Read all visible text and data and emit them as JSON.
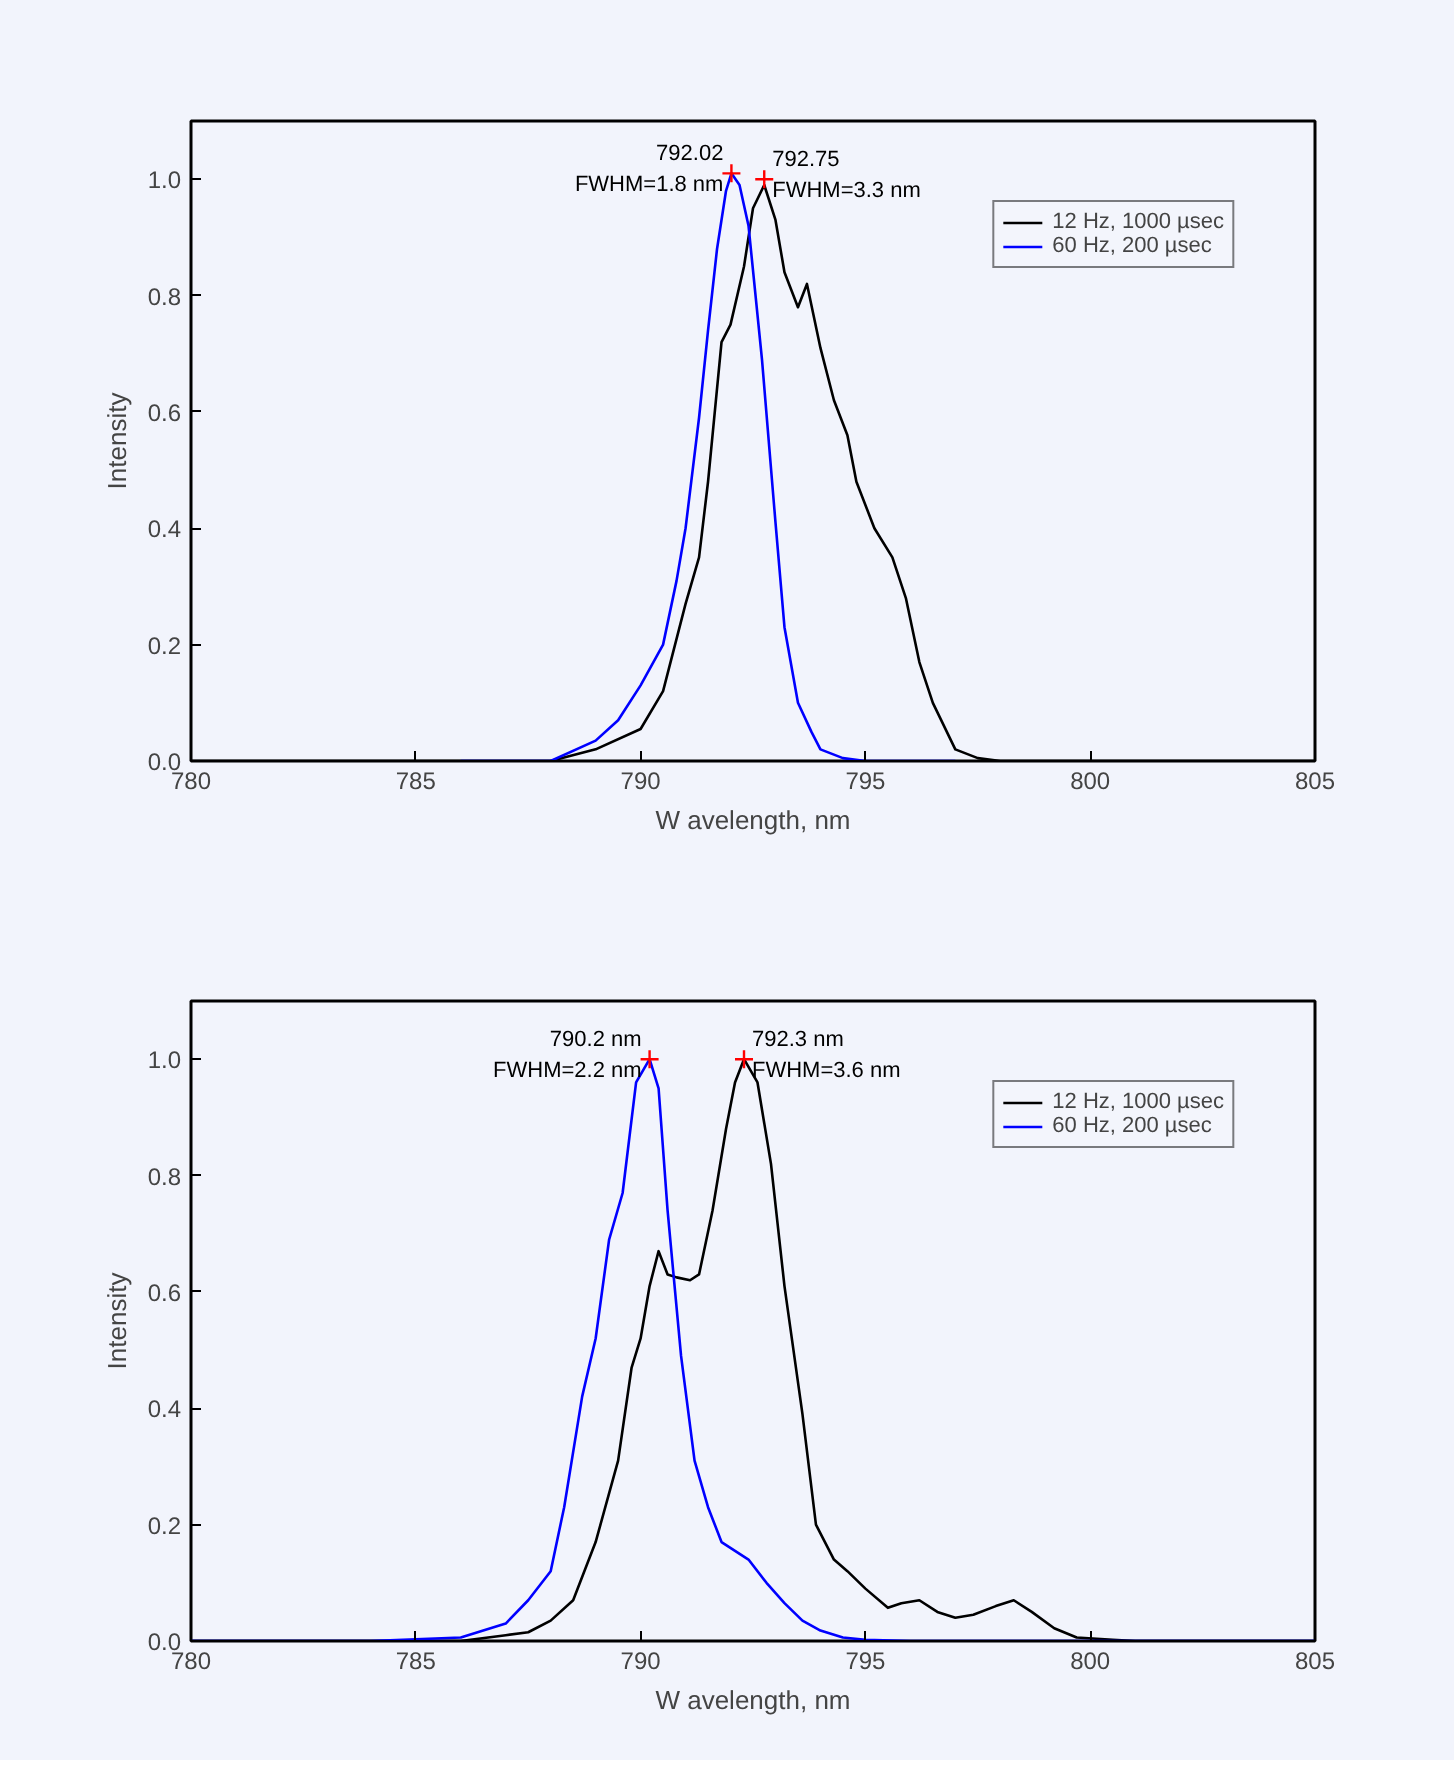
{
  "chart_data": [
    {
      "type": "line",
      "xlabel": "W avelength, nm",
      "ylabel": "Intensity",
      "xlim": [
        780,
        805
      ],
      "ylim": [
        0,
        1.1
      ],
      "xticks": [
        780,
        785,
        790,
        795,
        800,
        805
      ],
      "yticks": [
        {
          "value": 0,
          "label": "0.0"
        },
        {
          "value": 0.2,
          "label": "0.2"
        },
        {
          "value": 0.4,
          "label": "0.4"
        },
        {
          "value": 0.6,
          "label": "0.6"
        },
        {
          "value": 0.8,
          "label": "0.8"
        },
        {
          "value": 1,
          "label": "1.0"
        }
      ],
      "legend": "top right",
      "grid": false,
      "series": [
        {
          "name": "12 Hz, 1000 µsec",
          "color": "#000000",
          "x": [
            780,
            782,
            784,
            786,
            788,
            789,
            790,
            790.5,
            791,
            791.3,
            791.5,
            791.8,
            792,
            792.3,
            792.5,
            792.75,
            793,
            793.2,
            793.5,
            793.7,
            794,
            794.3,
            794.6,
            794.8,
            795.2,
            795.6,
            795.9,
            796.2,
            796.5,
            797,
            797.5,
            798,
            800,
            802,
            805
          ],
          "values": [
            0,
            0,
            0,
            0,
            0,
            0.02,
            0.055,
            0.12,
            0.27,
            0.35,
            0.48,
            0.72,
            0.75,
            0.85,
            0.95,
            0.99,
            0.93,
            0.84,
            0.78,
            0.82,
            0.71,
            0.62,
            0.56,
            0.48,
            0.4,
            0.35,
            0.28,
            0.17,
            0.1,
            0.02,
            0.005,
            0,
            0,
            0,
            0
          ]
        },
        {
          "name": "60 Hz, 200 µsec",
          "color": "#0000ff",
          "x": [
            786,
            788,
            789,
            789.5,
            790,
            790.5,
            790.8,
            791,
            791.3,
            791.5,
            791.7,
            791.9,
            792.02,
            792.2,
            792.4,
            792.7,
            793,
            793.2,
            793.5,
            793.8,
            794,
            794.5,
            795,
            797
          ],
          "values": [
            0,
            0,
            0.035,
            0.07,
            0.13,
            0.2,
            0.31,
            0.4,
            0.59,
            0.74,
            0.88,
            0.98,
            1.01,
            0.99,
            0.92,
            0.69,
            0.41,
            0.23,
            0.1,
            0.05,
            0.02,
            0.005,
            0,
            0
          ]
        }
      ],
      "annotations": [
        {
          "text": "792.02\nFWHM=1.8 nm",
          "x": 792.02,
          "y": 1.01
        },
        {
          "text": "792.75\nFWHM=3.3 nm",
          "x": 792.75,
          "y": 1.0
        }
      ]
    },
    {
      "type": "line",
      "xlabel": "W avelength, nm",
      "ylabel": "Intensity",
      "xlim": [
        780,
        805
      ],
      "ylim": [
        0,
        1.1
      ],
      "xticks": [
        780,
        785,
        790,
        795,
        800,
        805
      ],
      "yticks": [
        {
          "value": 0,
          "label": "0.0"
        },
        {
          "value": 0.2,
          "label": "0.2"
        },
        {
          "value": 0.4,
          "label": "0.4"
        },
        {
          "value": 0.6,
          "label": "0.6"
        },
        {
          "value": 0.8,
          "label": "0.8"
        },
        {
          "value": 1,
          "label": "1.0"
        }
      ],
      "legend": "top right",
      "grid": false,
      "series": [
        {
          "name": "12 Hz, 1000 µsec",
          "color": "#000000",
          "x": [
            780,
            782,
            784,
            786,
            787,
            787.5,
            788,
            788.5,
            789,
            789.5,
            789.8,
            790,
            790.2,
            790.4,
            790.6,
            790.8,
            791.1,
            791.3,
            791.6,
            791.9,
            792.1,
            792.3,
            792.6,
            792.9,
            793.2,
            793.6,
            793.9,
            794.3,
            794.6,
            795,
            795.5,
            795.8,
            796.2,
            796.6,
            797,
            797.4,
            797.9,
            798.3,
            798.7,
            799.2,
            799.7,
            800.5,
            801,
            803,
            805
          ],
          "values": [
            0,
            0,
            0,
            0,
            0.01,
            0.015,
            0.035,
            0.07,
            0.17,
            0.31,
            0.47,
            0.52,
            0.61,
            0.67,
            0.63,
            0.625,
            0.62,
            0.63,
            0.74,
            0.88,
            0.96,
            1.0,
            0.96,
            0.82,
            0.61,
            0.39,
            0.2,
            0.14,
            0.12,
            0.09,
            0.057,
            0.065,
            0.07,
            0.05,
            0.04,
            0.045,
            0.06,
            0.07,
            0.05,
            0.022,
            0.006,
            0.002,
            0,
            0,
            0
          ]
        },
        {
          "name": "60 Hz, 200 µsec",
          "color": "#0000ff",
          "x": [
            780,
            782,
            784,
            786,
            787,
            787.5,
            788,
            788.3,
            788.7,
            789,
            789.3,
            789.6,
            789.9,
            790.2,
            790.4,
            790.6,
            790.9,
            791.2,
            791.5,
            791.8,
            792.1,
            792.4,
            792.8,
            793.2,
            793.6,
            794,
            794.5,
            795,
            796,
            800,
            805
          ],
          "values": [
            0,
            0,
            0,
            0.006,
            0.03,
            0.07,
            0.12,
            0.23,
            0.42,
            0.52,
            0.69,
            0.77,
            0.96,
            1.0,
            0.95,
            0.74,
            0.49,
            0.31,
            0.23,
            0.17,
            0.155,
            0.14,
            0.1,
            0.065,
            0.035,
            0.018,
            0.006,
            0.002,
            0,
            0,
            0
          ]
        }
      ],
      "annotations": [
        {
          "text": "790.2 nm\nFWHM=2.2 nm",
          "x": 790.2,
          "y": 1.0
        },
        {
          "text": "792.3 nm\nFWHM=3.6 nm",
          "x": 792.3,
          "y": 1.0
        }
      ]
    }
  ]
}
